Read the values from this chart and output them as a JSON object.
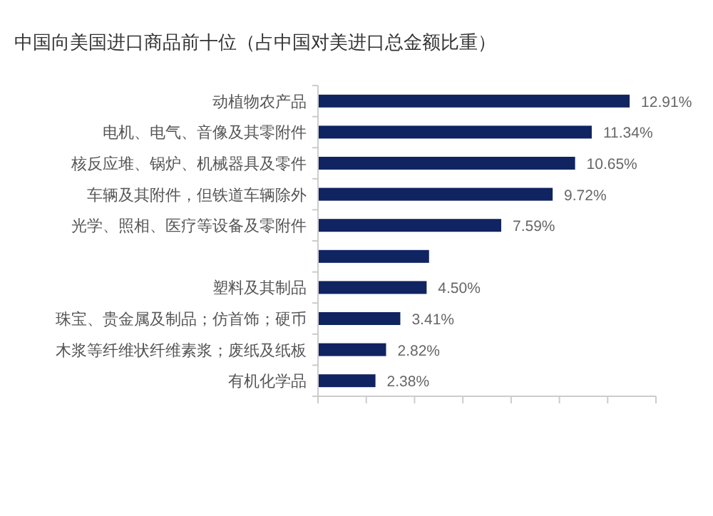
{
  "chart_data": {
    "type": "bar",
    "orientation": "horizontal",
    "title": "中国向美国进口商品前十位（占中国对美进口总金额比重）",
    "categories": [
      "动植物农产品",
      "电机、电气、音像及其零附件",
      "核反应堆、锅炉、机械器具及零件",
      "车辆及其附件，但铁道车辆除外",
      "光学、照相、医疗等设备及零附件",
      null,
      "塑料及其制品",
      "珠宝、贵金属及制品；仿首饰；硬币",
      "木浆等纤维状纤维素浆；废纸及纸板",
      "有机化学品"
    ],
    "values": [
      12.91,
      11.34,
      10.65,
      9.72,
      7.59,
      4.6,
      4.5,
      3.41,
      2.82,
      2.38
    ],
    "value_labels": [
      "12.91%",
      "11.34%",
      "10.65%",
      "9.72%",
      "7.59%",
      null,
      "4.50%",
      "3.41%",
      "2.82%",
      "2.38%"
    ],
    "color": "#0f2460",
    "xlim": [
      0,
      14
    ],
    "xticks": [
      {
        "value": 0,
        "label": null
      },
      {
        "value": 2,
        "label": null
      },
      {
        "value": 4,
        "label": null
      },
      {
        "value": 6,
        "label": null
      },
      {
        "value": 8,
        "label": null
      },
      {
        "value": 10,
        "label": null
      },
      {
        "value": 12,
        "label": null
      },
      {
        "value": 14,
        "label": null
      }
    ],
    "tick_labels": "y",
    "grid": false
  }
}
